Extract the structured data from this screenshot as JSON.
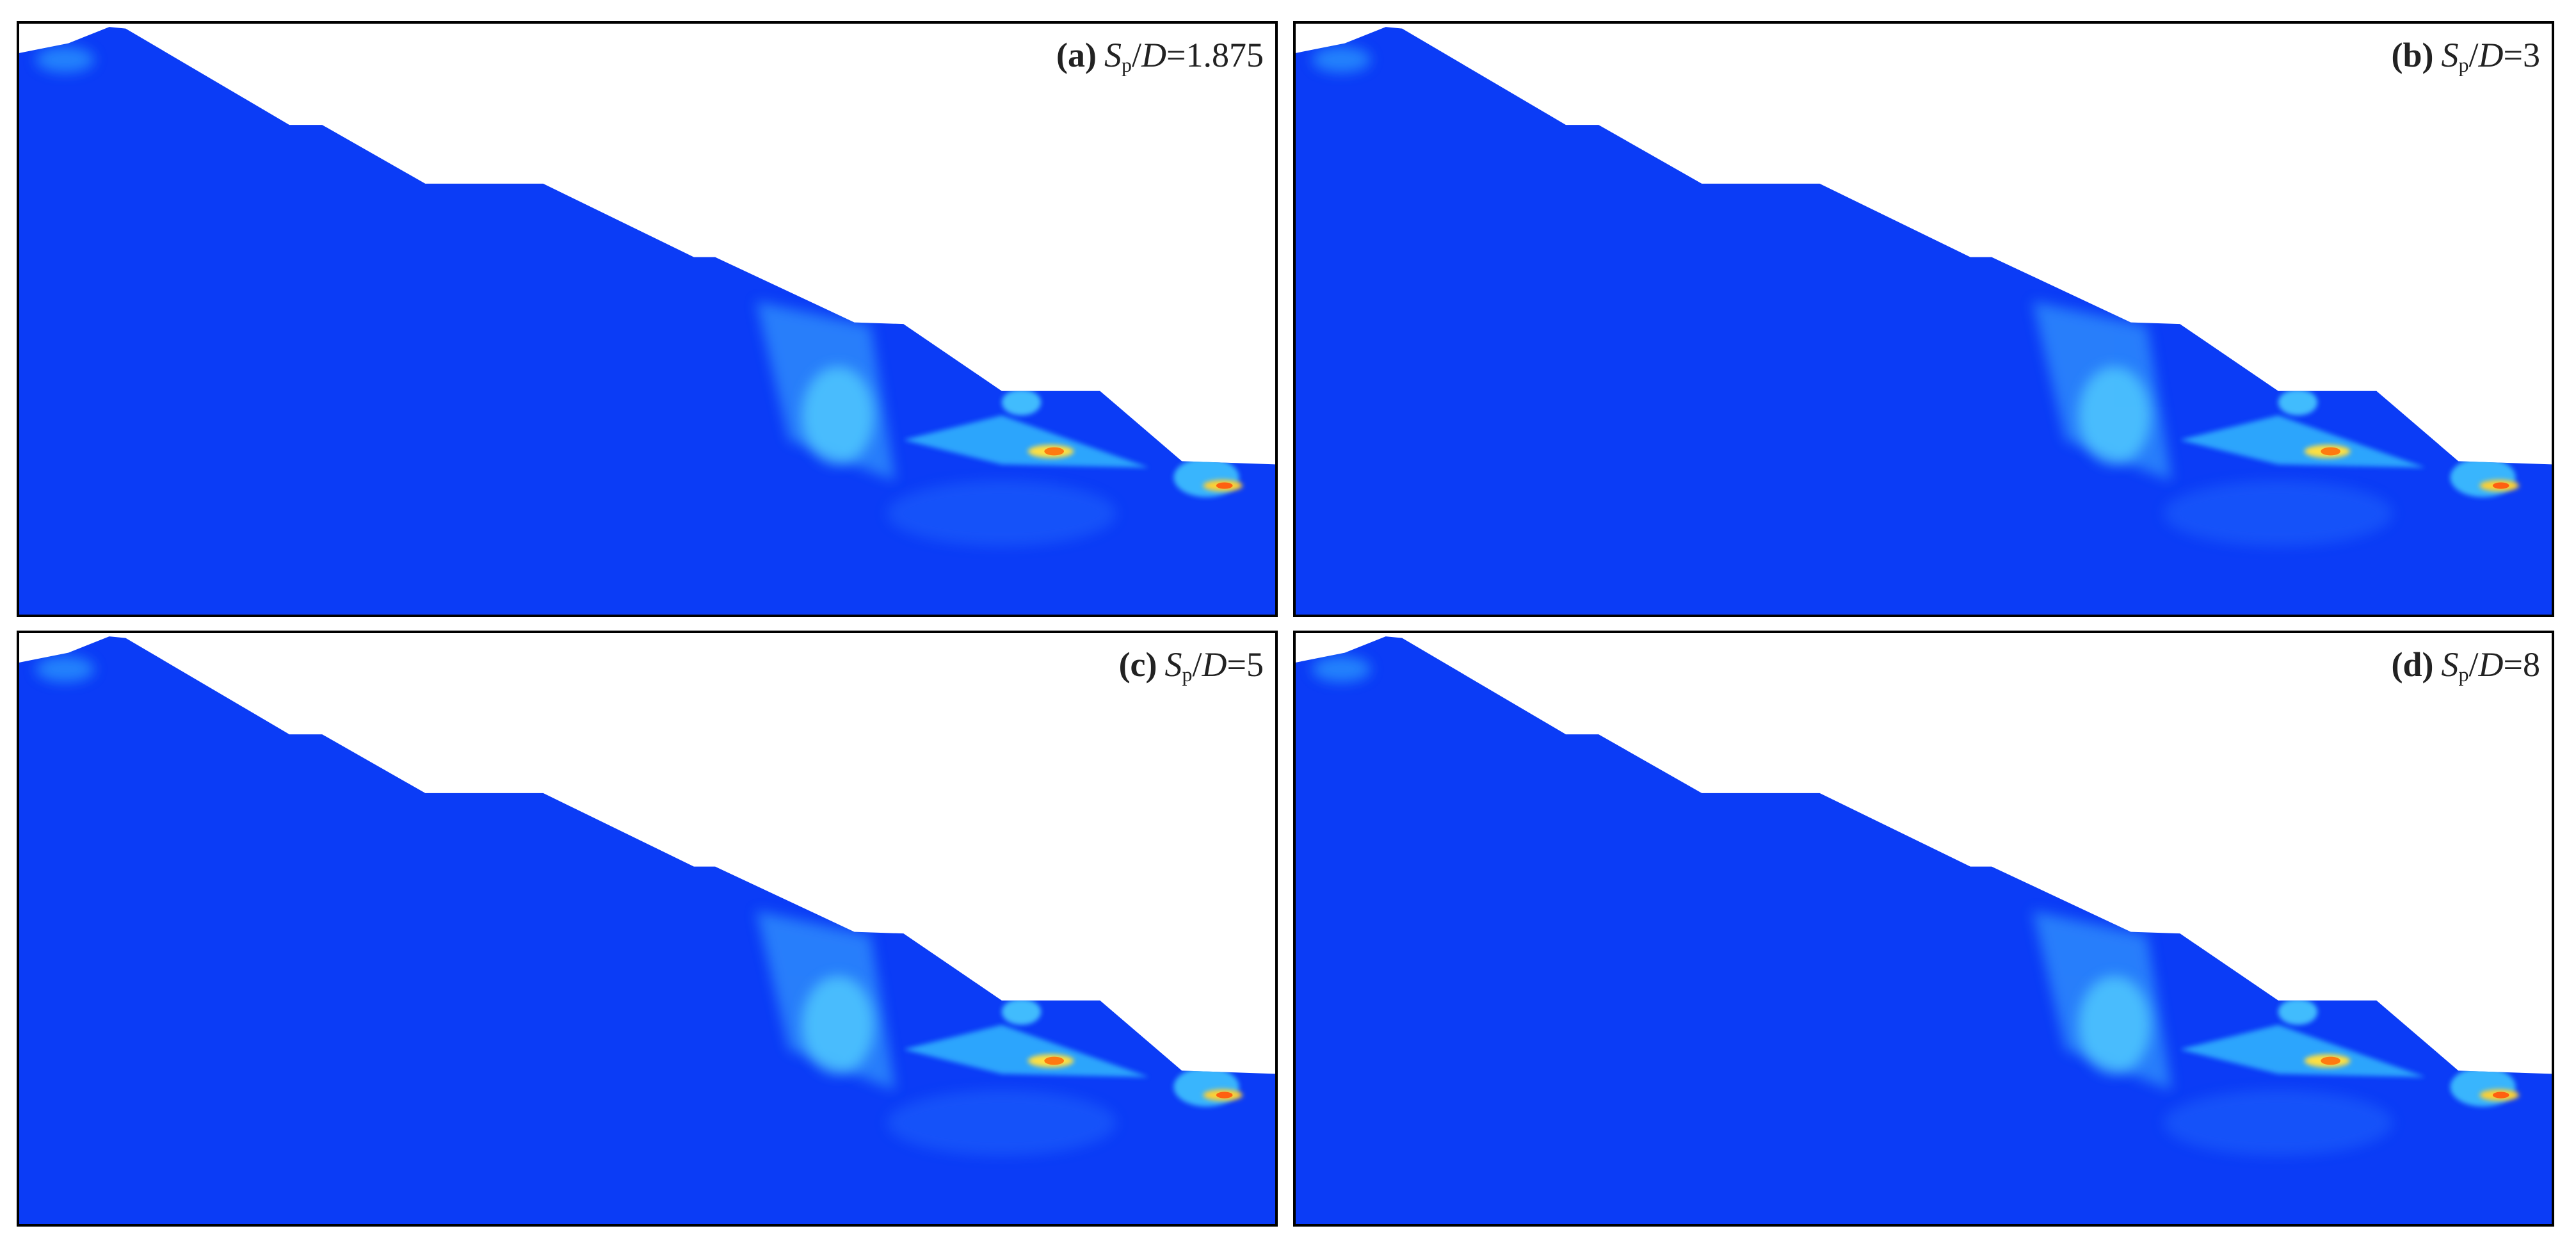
{
  "panels": [
    {
      "label": "(a)",
      "equation": [
        "S",
        "p",
        "/",
        "D",
        "=1.875"
      ]
    },
    {
      "label": "(b)",
      "equation": [
        "S",
        "p",
        "/",
        "D",
        "=3"
      ]
    },
    {
      "label": "(c)",
      "equation": [
        "S",
        "p",
        "/",
        "D",
        "=5"
      ]
    },
    {
      "label": "(d)",
      "equation": [
        "S",
        "p",
        "/",
        "D",
        "=8"
      ]
    }
  ]
}
